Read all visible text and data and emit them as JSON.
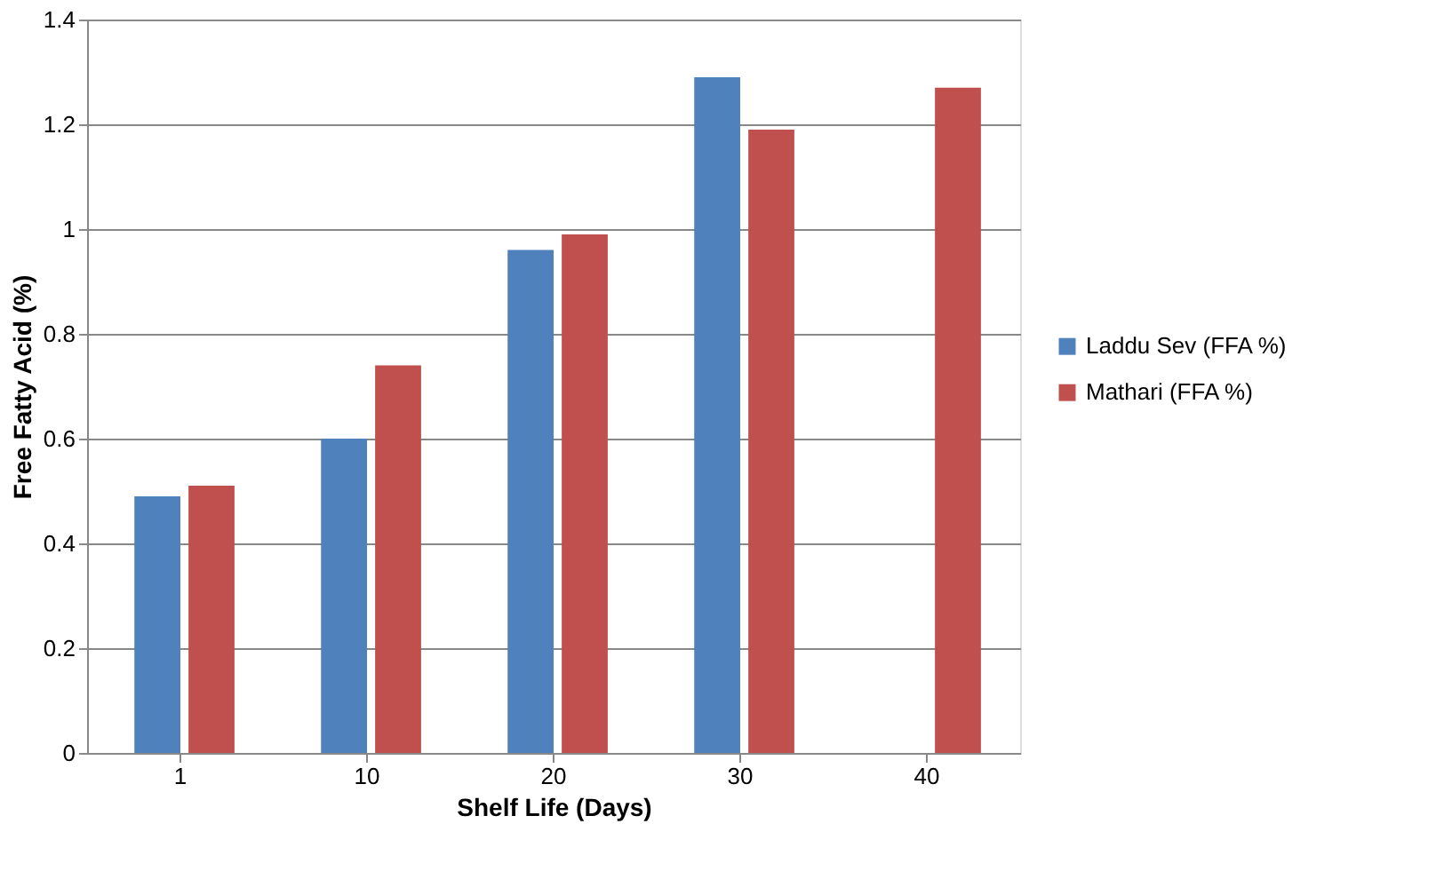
{
  "chart_data": {
    "type": "bar",
    "xlabel": "Shelf Life (Days)",
    "ylabel": "Free Fatty Acid (%)",
    "categories": [
      "1",
      "10",
      "20",
      "30",
      "40"
    ],
    "series": [
      {
        "name": "Laddu Sev  (FFA %)",
        "color": "#4f81bd",
        "values": [
          0.49,
          0.6,
          0.96,
          1.29,
          null
        ]
      },
      {
        "name": "Mathari (FFA %)",
        "color": "#c0504d",
        "values": [
          0.51,
          0.74,
          0.99,
          1.19,
          1.27
        ]
      }
    ],
    "ylim": [
      0,
      1.4
    ],
    "yticks": [
      0,
      0.2,
      0.4,
      0.6,
      0.8,
      1,
      1.2,
      1.4
    ],
    "grid": "y",
    "legend": "right"
  }
}
